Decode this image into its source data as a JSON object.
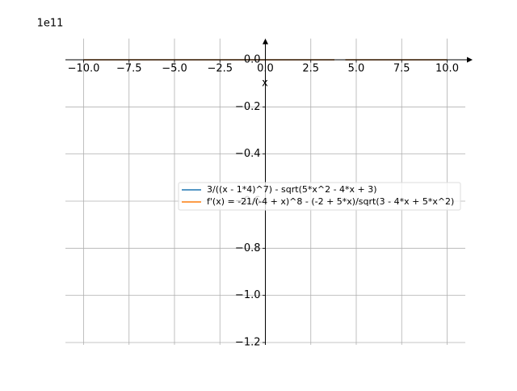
{
  "chart_data": {
    "type": "line",
    "offset_label": "1e11",
    "x_label": "x",
    "x": [
      -10,
      -7.5,
      -5,
      -2.5,
      0,
      2.5,
      3.8,
      4,
      4.4,
      5,
      7.5,
      10
    ],
    "series": [
      {
        "name": "3/((x - 1*4)^7) - sqrt(5*x^2 - 4*x + 3)",
        "color": "#1f77b4",
        "values": [
          0,
          0,
          0,
          0,
          0,
          0,
          0,
          null,
          0,
          0,
          0,
          0
        ]
      },
      {
        "name": "f'(x) = -21/(-4 + x)^8 - (-2 + 5*x)/sqrt(3 - 4*x + 5*x^2)",
        "color": "#ff7f0e",
        "values": [
          0,
          0,
          0,
          0,
          0,
          0,
          0,
          null,
          0,
          0,
          0,
          0
        ]
      }
    ],
    "xlim": [
      -11,
      11
    ],
    "ylim": [
      -1.21,
      0.09
    ],
    "xticks": [
      {
        "value": -10,
        "label": "−10.0"
      },
      {
        "value": -7.5,
        "label": "−7.5"
      },
      {
        "value": -5,
        "label": "−5.0"
      },
      {
        "value": -2.5,
        "label": "−2.5"
      },
      {
        "value": 0,
        "label": "0.0"
      },
      2.5,
      {
        "value": 5,
        "label": "5.0"
      },
      7.5,
      {
        "value": 10,
        "label": "10.0"
      }
    ],
    "yticks": [
      {
        "value": 0,
        "label": "0.0"
      },
      {
        "value": -0.2,
        "label": "−0.2"
      },
      {
        "value": -0.4,
        "label": "−0.4"
      },
      {
        "value": -0.6,
        "label": "−0.6"
      },
      {
        "value": -0.8,
        "label": "−0.8"
      },
      {
        "value": -1.0,
        "label": "−1.0"
      },
      {
        "value": -1.2,
        "label": "−1.2"
      }
    ],
    "grid": true,
    "legend_loc": "center right"
  }
}
